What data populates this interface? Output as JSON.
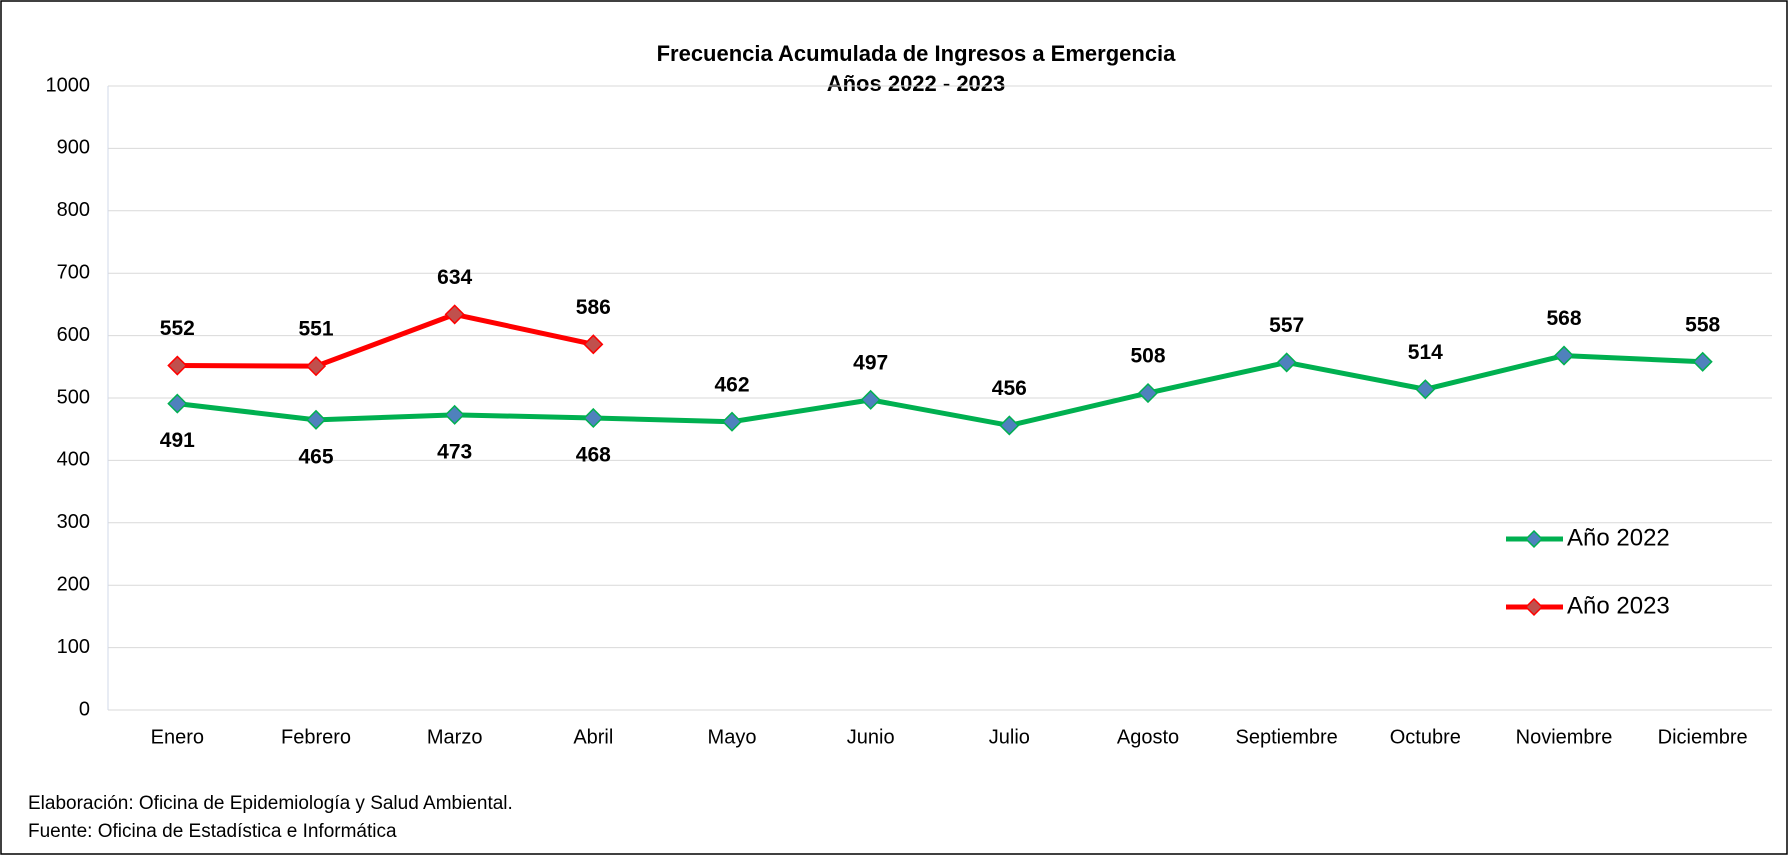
{
  "chart_data": {
    "type": "line",
    "title": "Frecuencia Acumulada de Ingresos a Emergencia",
    "subtitle": "Años 2022 - 2023",
    "categories": [
      "Enero",
      "Febrero",
      "Marzo",
      "Abril",
      "Mayo",
      "Junio",
      "Julio",
      "Agosto",
      "Septiembre",
      "Octubre",
      "Noviembre",
      "Diciembre"
    ],
    "series": [
      {
        "name": "Año 2022",
        "color": "#00b050",
        "marker_color": "#4f81bd",
        "values": [
          491,
          465,
          473,
          468,
          462,
          497,
          456,
          508,
          557,
          514,
          568,
          558
        ]
      },
      {
        "name": "Año 2023",
        "color": "#ff0000",
        "marker_color": "#c0504d",
        "values": [
          552,
          551,
          634,
          586,
          null,
          null,
          null,
          null,
          null,
          null,
          null,
          null
        ]
      }
    ],
    "ylim": [
      0,
      1000
    ],
    "yticks": [
      0,
      100,
      200,
      300,
      400,
      500,
      600,
      700,
      800,
      900,
      1000
    ],
    "grid": true,
    "legend": "right",
    "notes": [
      "Elaboración: Oficina de Epidemiología y Salud Ambiental.",
      "Fuente:  Oficina de Estadística e Informática"
    ]
  }
}
